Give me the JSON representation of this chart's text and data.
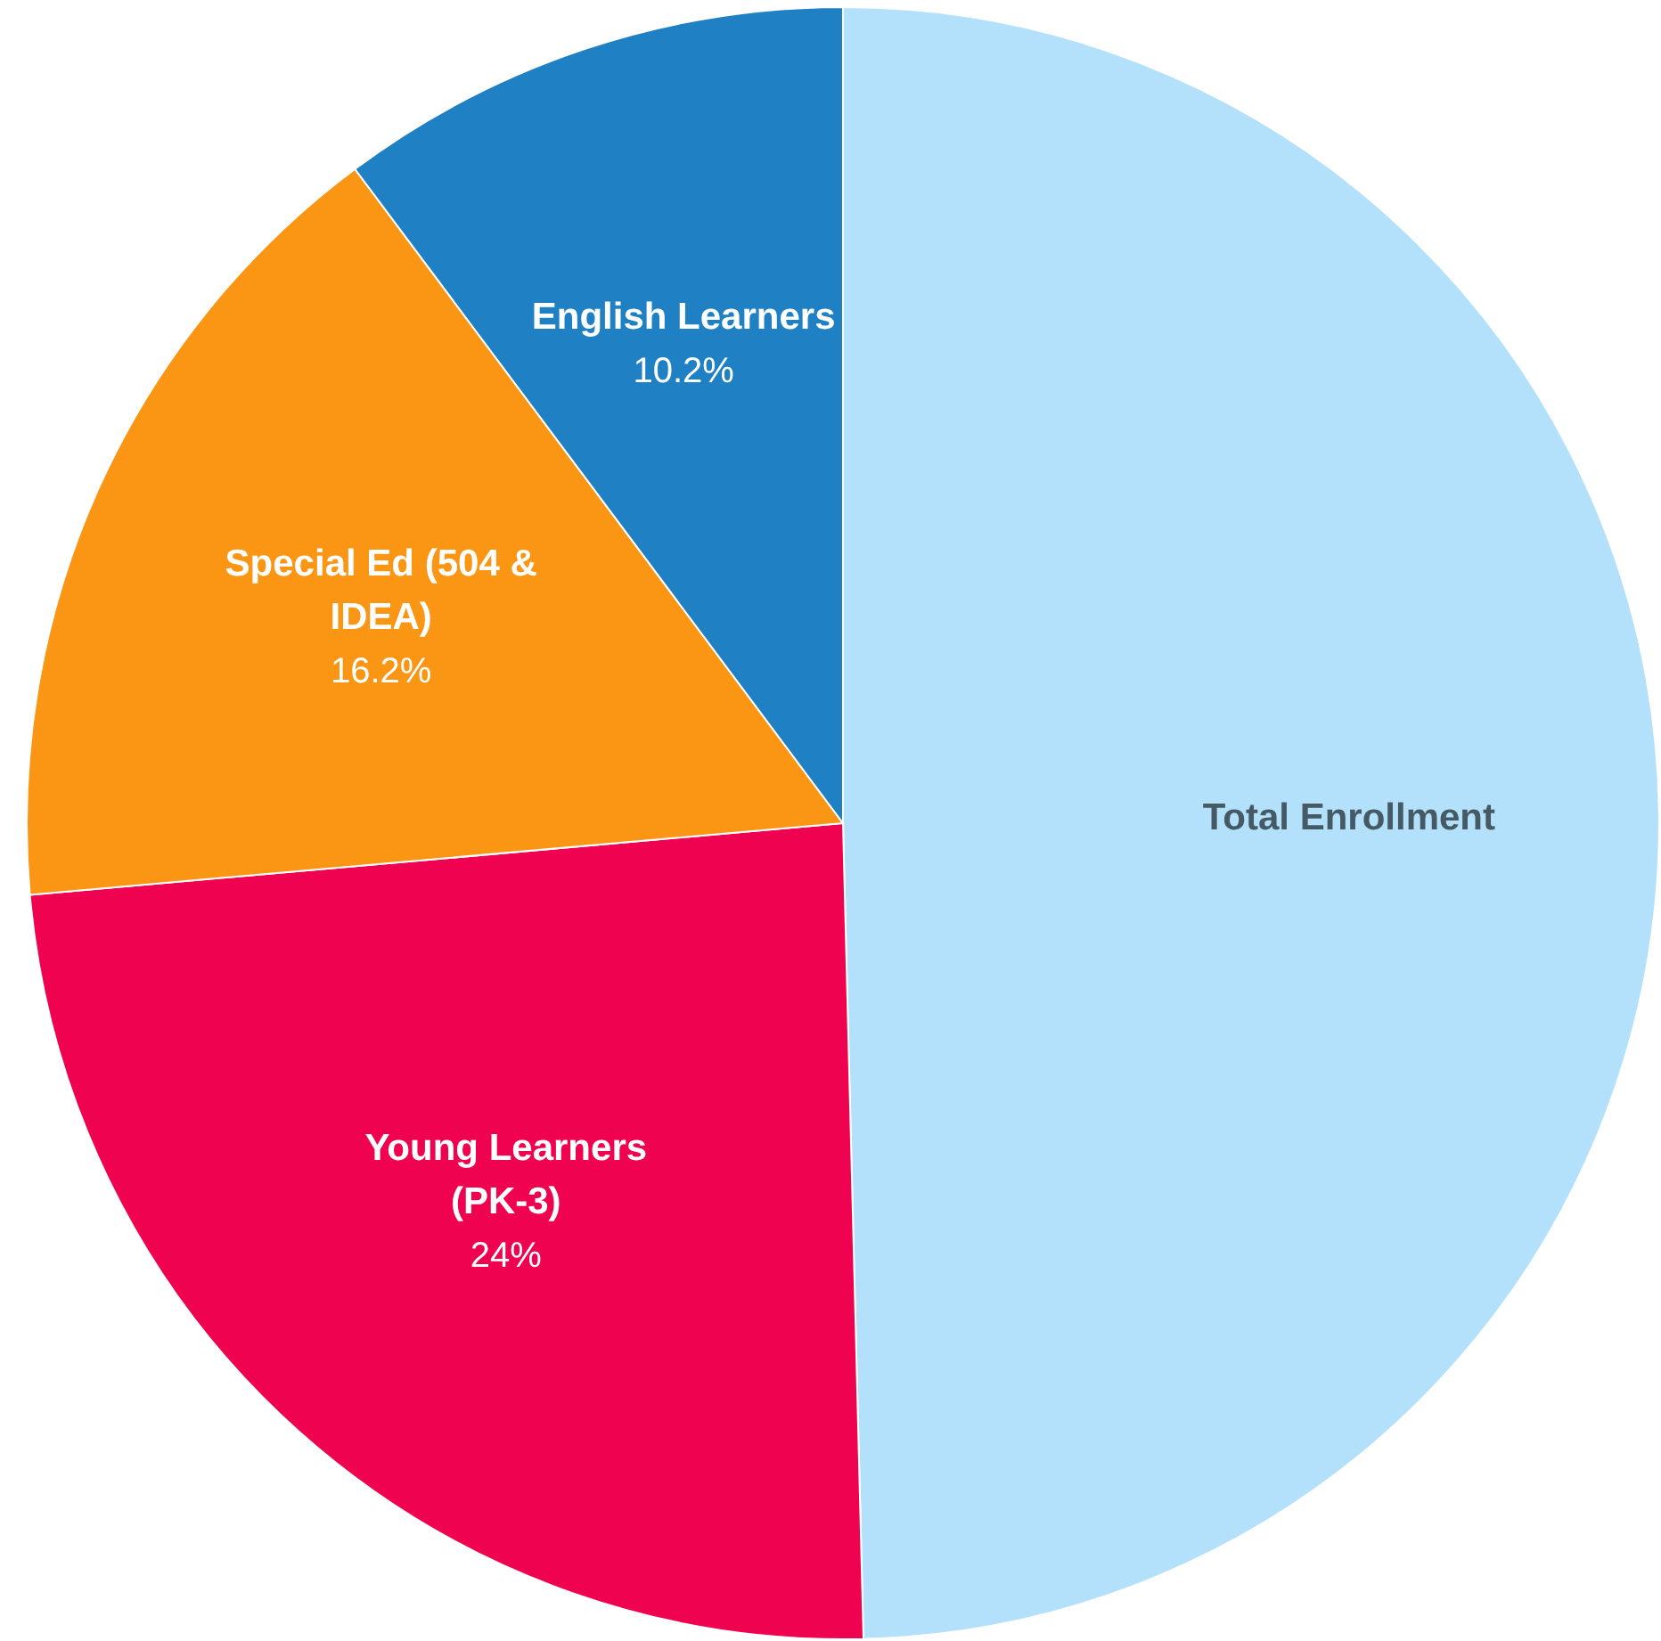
{
  "chart_data": {
    "type": "pie",
    "categories": [
      "Total Enrollment",
      "Young Learners (PK-3)",
      "Special Ed (504 & IDEA)",
      "English Learners"
    ],
    "values": [
      49.6,
      24,
      16.2,
      10.2
    ],
    "value_labels": [
      null,
      "24%",
      "16.2%",
      "10.2%"
    ],
    "colors": [
      "#b3e0fa",
      "#ef0350",
      "#fb9614",
      "#1f80c4"
    ]
  }
}
